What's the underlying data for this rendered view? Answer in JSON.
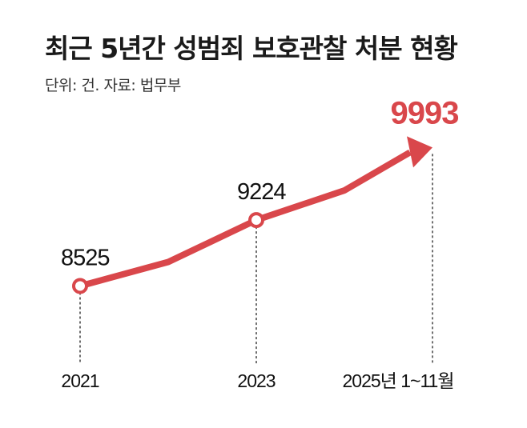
{
  "title": "최근 5년간 성범죄 보호관찰 처분 현황",
  "source": "단위: 건. 자료: 법무부",
  "colors": {
    "line": "#d9474b",
    "highlight": "#d9474b",
    "text": "#111111"
  },
  "chart_data": {
    "type": "line",
    "categories": [
      "2021",
      "2023",
      "2025년 1~11월"
    ],
    "values": [
      8525,
      9224,
      9993
    ],
    "value_labels": [
      "8525",
      "9224",
      "9993"
    ],
    "highlight_index": 2,
    "xlabel": "",
    "ylabel": "",
    "grid": false,
    "legend": "none"
  }
}
